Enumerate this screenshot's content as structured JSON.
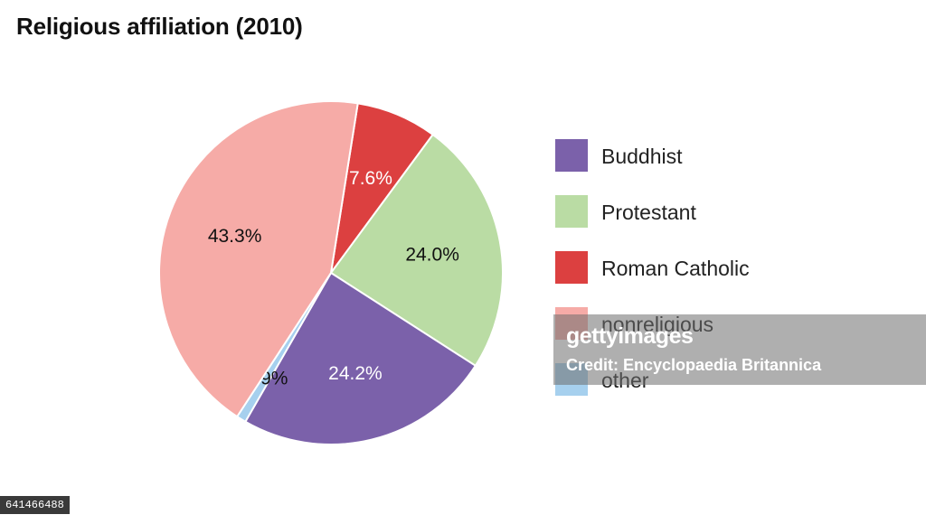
{
  "chart_data": {
    "type": "pie",
    "title": "Religious affiliation (2010)",
    "slices": [
      {
        "name": "Buddhist",
        "value": 24.2,
        "label": "24.2%",
        "color": "#7b61aa"
      },
      {
        "name": "Protestant",
        "value": 24.0,
        "label": "24.0%",
        "color": "#badca4"
      },
      {
        "name": "Roman Catholic",
        "value": 7.6,
        "label": "7.6%",
        "color": "#dc4040"
      },
      {
        "name": "nonreligious",
        "value": 43.3,
        "label": "43.3%",
        "color": "#f6aba7"
      },
      {
        "name": "other",
        "value": 0.9,
        "label": "0.9%",
        "color": "#a6d0ee"
      }
    ],
    "legend_position": "right"
  },
  "watermark": {
    "brand": "gettyimages",
    "credit": "Credit: Encyclopaedia Britannica"
  },
  "image_id": "641466488"
}
